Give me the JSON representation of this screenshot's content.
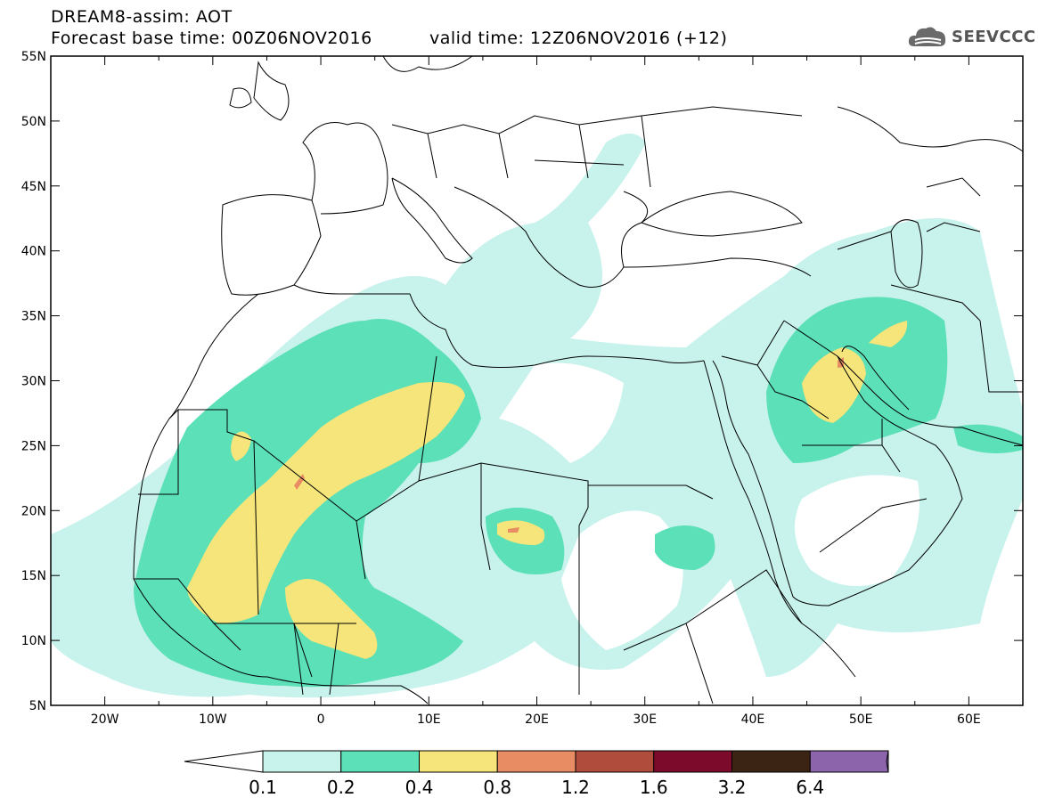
{
  "header": {
    "title": "DREAM8-assim: AOT",
    "base_time": "Forecast base time: 00Z06NOV2016",
    "valid_time": "valid time: 12Z06NOV2016 (+12)"
  },
  "logo": {
    "text": "SEEVCCC",
    "icon": "cloud-icon"
  },
  "map": {
    "lon_ticks": [
      "20W",
      "10W",
      "0",
      "10E",
      "20E",
      "30E",
      "40E",
      "50E",
      "60E"
    ],
    "lat_ticks": [
      "55N",
      "50N",
      "45N",
      "40N",
      "35N",
      "30N",
      "25N",
      "20N",
      "15N",
      "10N",
      "5N"
    ],
    "lon_range": [
      -25,
      65
    ],
    "lat_range": [
      5,
      55
    ]
  },
  "colorbar": {
    "labels": [
      "0.1",
      "0.2",
      "0.4",
      "0.8",
      "1.2",
      "1.6",
      "3.2",
      "6.4"
    ],
    "colors": [
      "#ffffff",
      "#c8f2ec",
      "#5ce0b8",
      "#f5e57a",
      "#e88c64",
      "#b04c3c",
      "#7c0a2a",
      "#3c2414",
      "#8c64ac"
    ]
  }
}
